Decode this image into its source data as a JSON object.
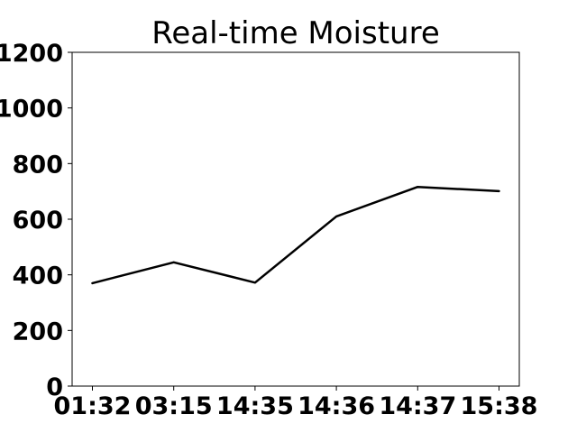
{
  "chart_data": {
    "type": "line",
    "title": "Real-time Moisture",
    "xlabel": "",
    "ylabel": "",
    "categories": [
      "01:32",
      "03:15",
      "14:35",
      "14:36",
      "14:37",
      "15:38"
    ],
    "series": [
      {
        "values": [
          370,
          445,
          372,
          610,
          716,
          701
        ],
        "color": "#000000"
      }
    ],
    "yticks": [
      0,
      200,
      400,
      600,
      800,
      1000,
      1200
    ],
    "ylim": [
      0,
      1200
    ],
    "grid": false,
    "legend": "none"
  }
}
